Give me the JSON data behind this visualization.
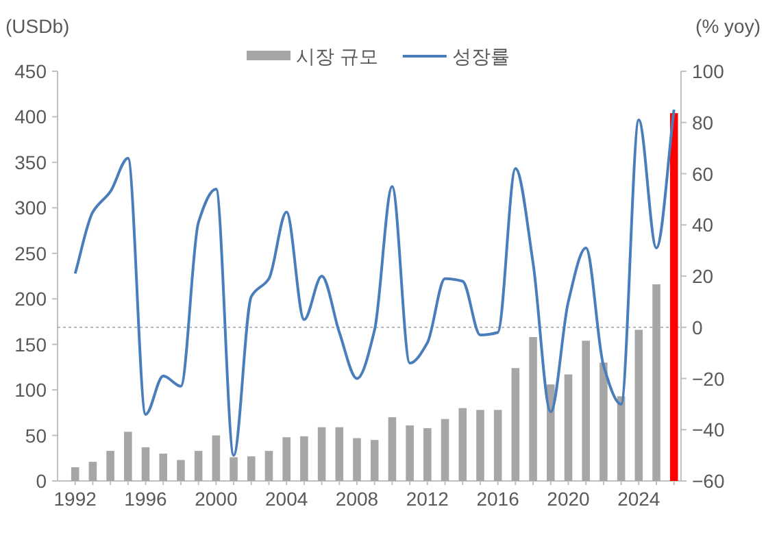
{
  "chart_data": {
    "type": "bar",
    "ylabel": "(USDb)",
    "y2label": "(% yoy)",
    "x": [
      1992,
      1993,
      1994,
      1995,
      1996,
      1997,
      1998,
      1999,
      2000,
      2001,
      2002,
      2003,
      2004,
      2005,
      2006,
      2007,
      2008,
      2009,
      2010,
      2011,
      2012,
      2013,
      2014,
      2015,
      2016,
      2017,
      2018,
      2019,
      2020,
      2021,
      2022,
      2023,
      2024,
      2025,
      2026
    ],
    "xlim": [
      1991,
      2026.4
    ],
    "xticks": [
      1992,
      1996,
      2000,
      2004,
      2008,
      2012,
      2016,
      2020,
      2024
    ],
    "ylim": [
      0,
      450
    ],
    "yticks": [
      0,
      50,
      100,
      150,
      200,
      250,
      300,
      350,
      400,
      450
    ],
    "y2lim": [
      -60,
      100
    ],
    "y2ticks": [
      {
        "value": -60,
        "label": "−60"
      },
      {
        "value": -40,
        "label": "−40"
      },
      {
        "value": -20,
        "label": "−20"
      },
      0,
      20,
      40,
      60,
      80,
      100
    ],
    "series": [
      {
        "name": "시장 규모",
        "color": "#a6a6a6",
        "colors": [
          "#a6a6a6",
          "#a6a6a6",
          "#a6a6a6",
          "#a6a6a6",
          "#a6a6a6",
          "#a6a6a6",
          "#a6a6a6",
          "#a6a6a6",
          "#a6a6a6",
          "#a6a6a6",
          "#a6a6a6",
          "#a6a6a6",
          "#a6a6a6",
          "#a6a6a6",
          "#a6a6a6",
          "#a6a6a6",
          "#a6a6a6",
          "#a6a6a6",
          "#a6a6a6",
          "#a6a6a6",
          "#a6a6a6",
          "#a6a6a6",
          "#a6a6a6",
          "#a6a6a6",
          "#a6a6a6",
          "#a6a6a6",
          "#a6a6a6",
          "#a6a6a6",
          "#a6a6a6",
          "#a6a6a6",
          "#a6a6a6",
          "#a6a6a6",
          "#a6a6a6",
          "#a6a6a6",
          "#ff0000"
        ],
        "values": [
          15,
          21,
          33,
          54,
          37,
          30,
          23,
          33,
          50,
          26,
          27,
          33,
          48,
          49,
          59,
          59,
          47,
          45,
          70,
          61,
          58,
          68,
          80,
          78,
          78,
          124,
          158,
          106,
          117,
          154,
          130,
          93,
          166,
          216,
          404
        ]
      },
      {
        "name": "성장률",
        "type": "line",
        "axis": "y2",
        "color": "#4a7ebb",
        "values": [
          21,
          45,
          53,
          66,
          -34,
          -19,
          -23,
          41,
          54,
          -50,
          12,
          19,
          45,
          3,
          20,
          -2,
          -20,
          -1,
          55,
          -14,
          -6,
          19,
          18,
          -3,
          -2,
          62,
          25,
          -33,
          10,
          31,
          -15,
          -30,
          81,
          31,
          85
        ]
      }
    ],
    "ref_lines": [
      {
        "axis": "y2",
        "value": 0,
        "color": "#a6a6a6",
        "line_style": "dotted"
      }
    ],
    "legend": "top",
    "grid": false
  }
}
